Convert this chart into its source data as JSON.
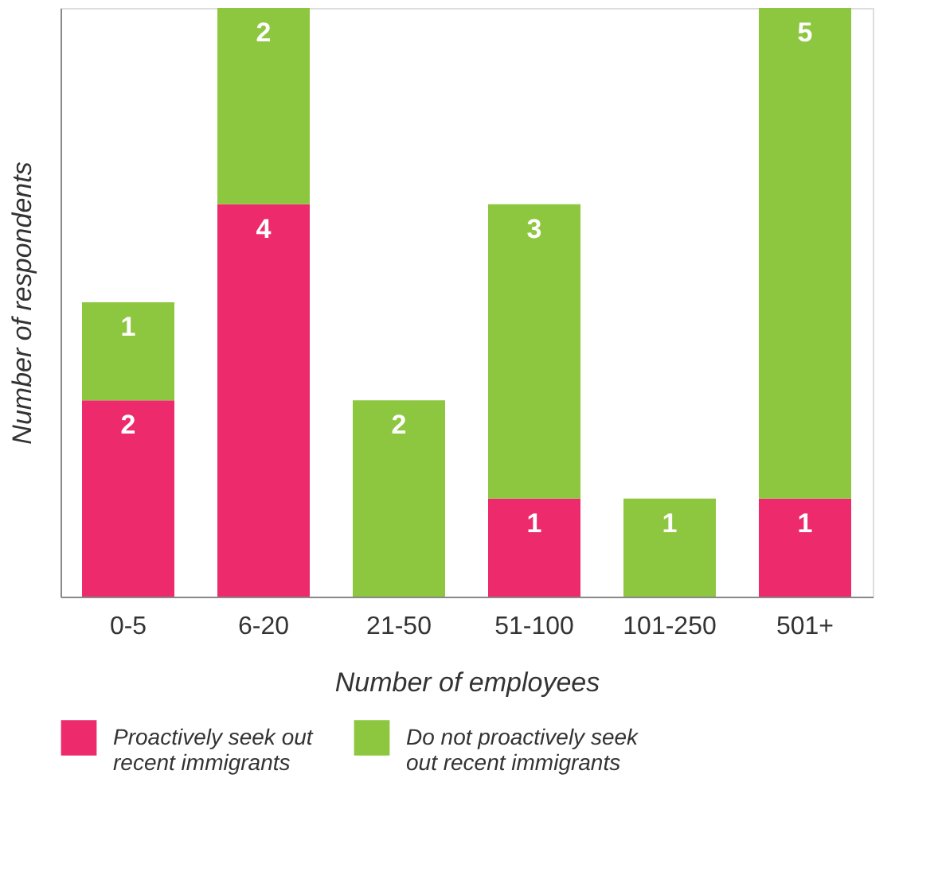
{
  "chart_data": {
    "type": "bar",
    "stacked": true,
    "xlabel": "Number of employees",
    "ylabel": "Number of respondents",
    "categories": [
      "0-5",
      "6-20",
      "21-50",
      "51-100",
      "101-250",
      "501+"
    ],
    "series": [
      {
        "name": "Proactively seek out recent immigrants",
        "color": "#ec2a6c",
        "values": [
          2,
          4,
          null,
          1,
          null,
          1
        ]
      },
      {
        "name": "Do not proactively seek out recent immigrants",
        "color": "#8dc63f",
        "values": [
          1,
          2,
          2,
          3,
          1,
          5
        ]
      }
    ],
    "ylim": [
      0,
      6
    ],
    "tick_labels": "x",
    "data_labels": true,
    "legend": "bottom",
    "grid": false
  }
}
